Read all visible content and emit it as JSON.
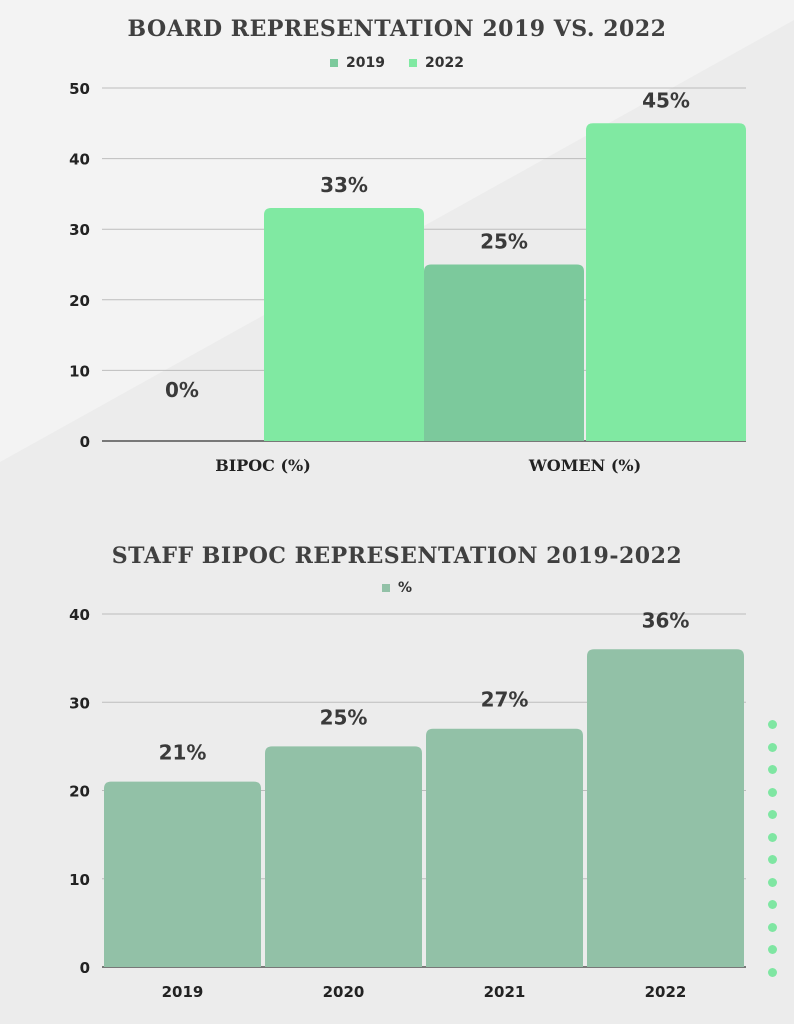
{
  "colors": {
    "c2019": "#7cc99c",
    "c2022": "#80e9a2",
    "staff": "#92c1a7",
    "axis": "#333333",
    "grid": "#bdbdbd"
  },
  "chart_data": [
    {
      "type": "bar",
      "title": "BOARD REPRESENTATION 2019 VS. 2022",
      "categories": [
        "BIPOC (%)",
        "WOMEN (%)"
      ],
      "series": [
        {
          "name": "2019",
          "values": [
            0,
            25
          ],
          "labels": [
            "0%",
            "25%"
          ]
        },
        {
          "name": "2022",
          "values": [
            33,
            45
          ],
          "labels": [
            "33%",
            "45%"
          ]
        }
      ],
      "yticks": [
        "0",
        "10",
        "20",
        "30",
        "40",
        "50"
      ],
      "ylim": [
        0,
        50
      ],
      "legend": "top-center",
      "grid": true
    },
    {
      "type": "bar",
      "title": "STAFF BIPOC REPRESENTATION 2019-2022",
      "categories": [
        "2019",
        "2020",
        "2021",
        "2022"
      ],
      "series": [
        {
          "name": "%",
          "values": [
            21,
            25,
            27,
            36
          ],
          "labels": [
            "21%",
            "25%",
            "27%",
            "36%"
          ]
        }
      ],
      "yticks": [
        "0",
        "10",
        "20",
        "30",
        "40"
      ],
      "ylim": [
        0,
        40
      ],
      "legend": "top-center",
      "grid": true
    }
  ]
}
